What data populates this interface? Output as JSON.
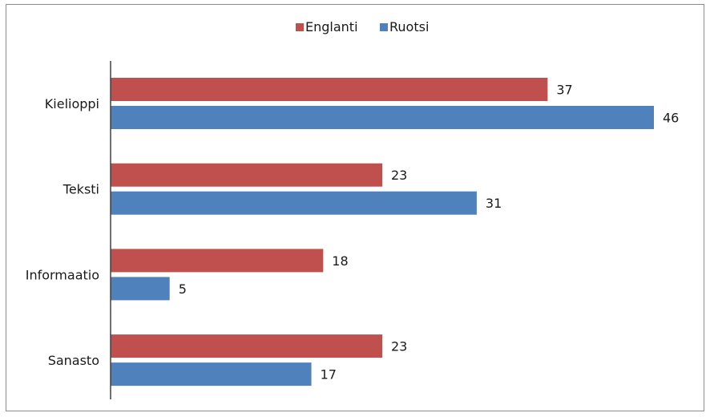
{
  "chart_data": {
    "type": "bar",
    "orientation": "horizontal",
    "categories": [
      "Kielioppi",
      "Teksti",
      "Informaatio",
      "Sanasto"
    ],
    "series": [
      {
        "name": "Englanti",
        "values": [
          37,
          23,
          18,
          23
        ],
        "color": "#c0504d"
      },
      {
        "name": "Ruotsi",
        "values": [
          46,
          31,
          5,
          17
        ],
        "color": "#4f81bd"
      }
    ],
    "xlim": [
      0,
      46
    ],
    "grid": false,
    "legend_position": "top-center",
    "data_labels": true
  }
}
